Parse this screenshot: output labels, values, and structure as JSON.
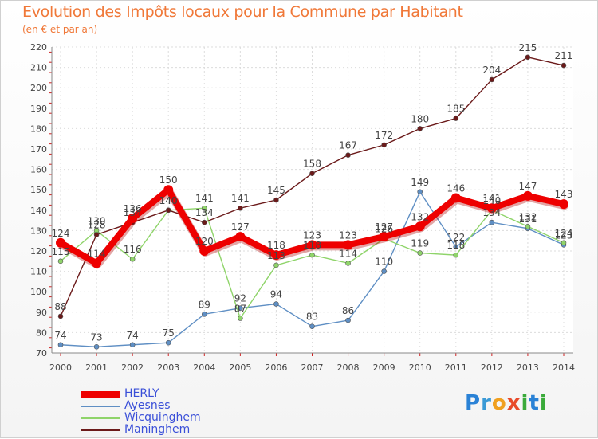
{
  "header": {
    "title": "Evolution des Impôts locaux pour la Commune par Habitant",
    "subtitle": "(en € et par an)"
  },
  "logo": {
    "letters": [
      {
        "ch": "P",
        "color": "#2a82d6"
      },
      {
        "ch": "r",
        "color": "#3a9ad6"
      },
      {
        "ch": "o",
        "color": "#f0a020"
      },
      {
        "ch": "x",
        "color": "#e84a2a"
      },
      {
        "ch": "i",
        "color": "#3aaa3a"
      },
      {
        "ch": "t",
        "color": "#2a82d6"
      },
      {
        "ch": "i",
        "color": "#3aaa3a"
      }
    ]
  },
  "chart_data": {
    "type": "line",
    "categories": [
      "2000",
      "2001",
      "2002",
      "2003",
      "2004",
      "2005",
      "2006",
      "2007",
      "2008",
      "2009",
      "2010",
      "2011",
      "2012",
      "2013",
      "2014"
    ],
    "ylim": [
      70,
      220
    ],
    "yticks": [
      70,
      80,
      90,
      100,
      110,
      120,
      130,
      140,
      150,
      160,
      170,
      180,
      190,
      200,
      210,
      220
    ],
    "grid": true,
    "legend_position": "bottom-left",
    "series": [
      {
        "name": "HERLY",
        "color": "#ee0000",
        "values": [
          124,
          114,
          136,
          150,
          120,
          127,
          118,
          123,
          123,
          127,
          132,
          146,
          141,
          147,
          143
        ]
      },
      {
        "name": "Ayesnes",
        "color": "#5f8fc4",
        "values": [
          74,
          73,
          74,
          75,
          89,
          92,
          94,
          83,
          86,
          110,
          149,
          122,
          134,
          131,
          123
        ]
      },
      {
        "name": "Wicquinghem",
        "color": "#8fd46a",
        "values": [
          115,
          130,
          116,
          140,
          141,
          87,
          113,
          118,
          114,
          126,
          119,
          118,
          140,
          132,
          124
        ]
      },
      {
        "name": "Maninghem",
        "color": "#6b1a1a",
        "values": [
          88,
          128,
          134,
          140,
          134,
          141,
          145,
          158,
          167,
          172,
          180,
          185,
          204,
          215,
          211
        ]
      }
    ]
  }
}
